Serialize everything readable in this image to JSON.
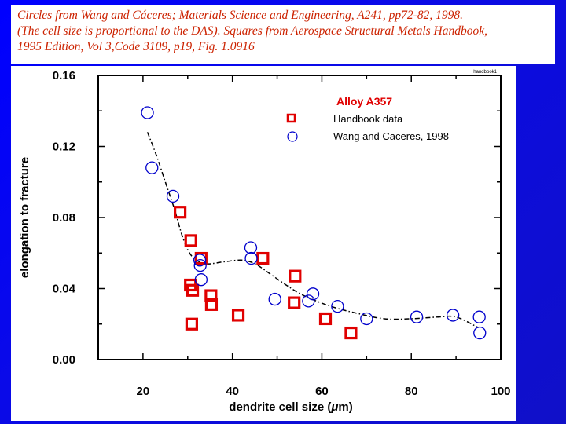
{
  "caption": {
    "line1": "Circles from Wang and Cáceres; Materials Science and Engineering, A241, pp72-82, 1998.",
    "line2": "(The cell size is proportional to the DAS). Squares from Aerospace Structural Metals Handbook,",
    "line3": "1995 Edition, Vol 3,Code 3109, p19, Fig. 1.0916"
  },
  "colors": {
    "background": "#0000ff",
    "handbook": "#e00000",
    "wang": "#0000cc",
    "title": "#e00000"
  },
  "chart_data": {
    "type": "scatter",
    "title": "Alloy A357",
    "tag": "handbook1",
    "xlabel_prefix": "dendrite cell size  (",
    "xlabel_mu": "μ",
    "xlabel_suffix": "m)",
    "ylabel": "elongation to fracture",
    "xlim": [
      10,
      100
    ],
    "ylim": [
      0,
      0.16
    ],
    "xticks": [
      "20",
      "40",
      "60",
      "80",
      "100"
    ],
    "yticks": [
      "0.00",
      "0.04",
      "0.08",
      "0.12",
      "0.16"
    ],
    "legend_position": "top-right",
    "series": [
      {
        "name": "Handbook data",
        "marker": "square",
        "x": [
          28.3,
          30.7,
          30.6,
          31.1,
          30.9,
          33.0,
          35.2,
          35.3,
          41.3,
          46.8,
          54.0,
          53.8,
          60.8,
          66.5
        ],
        "y": [
          0.083,
          0.067,
          0.042,
          0.039,
          0.02,
          0.057,
          0.036,
          0.031,
          0.025,
          0.057,
          0.047,
          0.032,
          0.023,
          0.015
        ]
      },
      {
        "name": "Wang and Caceres, 1998",
        "marker": "circle",
        "x": [
          21.0,
          22.0,
          26.7,
          32.7,
          32.8,
          33.0,
          44.1,
          44.2,
          49.5,
          57.0,
          58.0,
          63.5,
          70.0,
          81.2,
          89.3,
          95.2,
          95.3
        ],
        "y": [
          0.139,
          0.108,
          0.092,
          0.056,
          0.053,
          0.045,
          0.063,
          0.057,
          0.034,
          0.033,
          0.037,
          0.03,
          0.023,
          0.024,
          0.025,
          0.024,
          0.015
        ]
      }
    ],
    "fit_curve": {
      "x": [
        21,
        23,
        25,
        27,
        29,
        31,
        34,
        38,
        42,
        45,
        48,
        52,
        56,
        62,
        68,
        74,
        80,
        86,
        90,
        95
      ],
      "y": [
        0.128,
        0.115,
        0.1,
        0.085,
        0.068,
        0.058,
        0.054,
        0.055,
        0.056,
        0.054,
        0.049,
        0.042,
        0.036,
        0.03,
        0.026,
        0.023,
        0.023,
        0.024,
        0.024,
        0.018
      ]
    }
  }
}
